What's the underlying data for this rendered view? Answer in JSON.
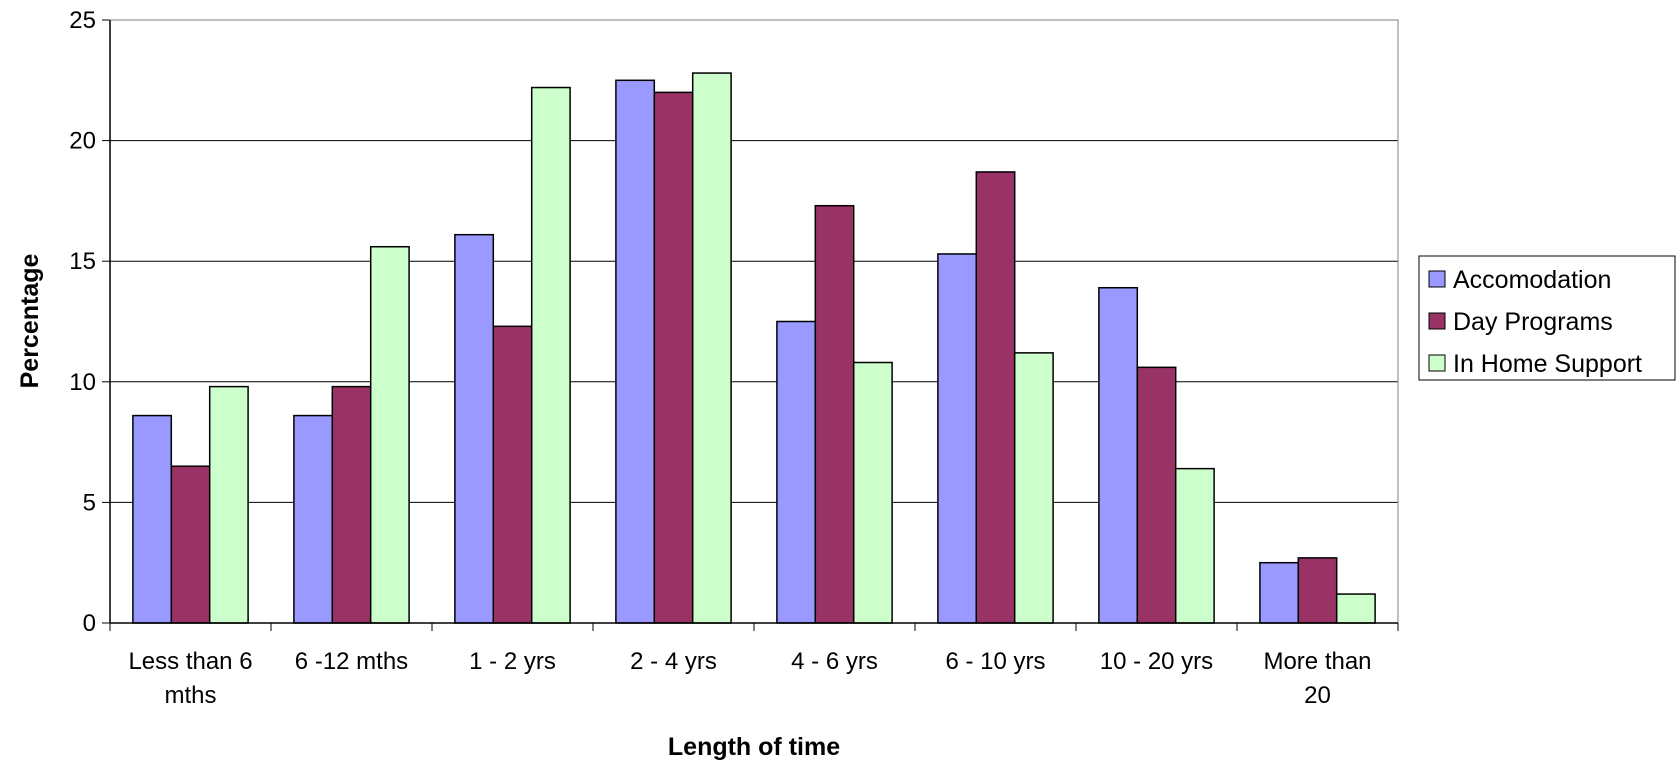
{
  "chart_data": {
    "type": "bar",
    "title": "",
    "xlabel": "Length of time",
    "ylabel": "Percentage",
    "ylim": [
      0,
      25
    ],
    "yticks": [
      0,
      5,
      10,
      15,
      20,
      25
    ],
    "grid": true,
    "legend_position": "right",
    "categories": [
      [
        "Less than 6",
        "mths"
      ],
      [
        "6 -12 mths"
      ],
      [
        "1 - 2 yrs"
      ],
      [
        "2 - 4 yrs"
      ],
      [
        "4 - 6 yrs"
      ],
      [
        "6 - 10 yrs"
      ],
      [
        "10 - 20 yrs"
      ],
      [
        "More than",
        "20"
      ]
    ],
    "series": [
      {
        "name": "Accomodation",
        "color": "#9999ff",
        "values": [
          8.6,
          8.6,
          16.1,
          22.5,
          12.5,
          15.3,
          13.9,
          2.5
        ]
      },
      {
        "name": "Day Programs",
        "color": "#993366",
        "values": [
          6.5,
          9.8,
          12.3,
          22.0,
          17.3,
          18.7,
          10.6,
          2.7
        ]
      },
      {
        "name": "In Home Support",
        "color": "#ccffcc",
        "values": [
          9.8,
          15.6,
          22.2,
          22.8,
          10.8,
          11.2,
          6.4,
          1.2
        ]
      }
    ]
  }
}
